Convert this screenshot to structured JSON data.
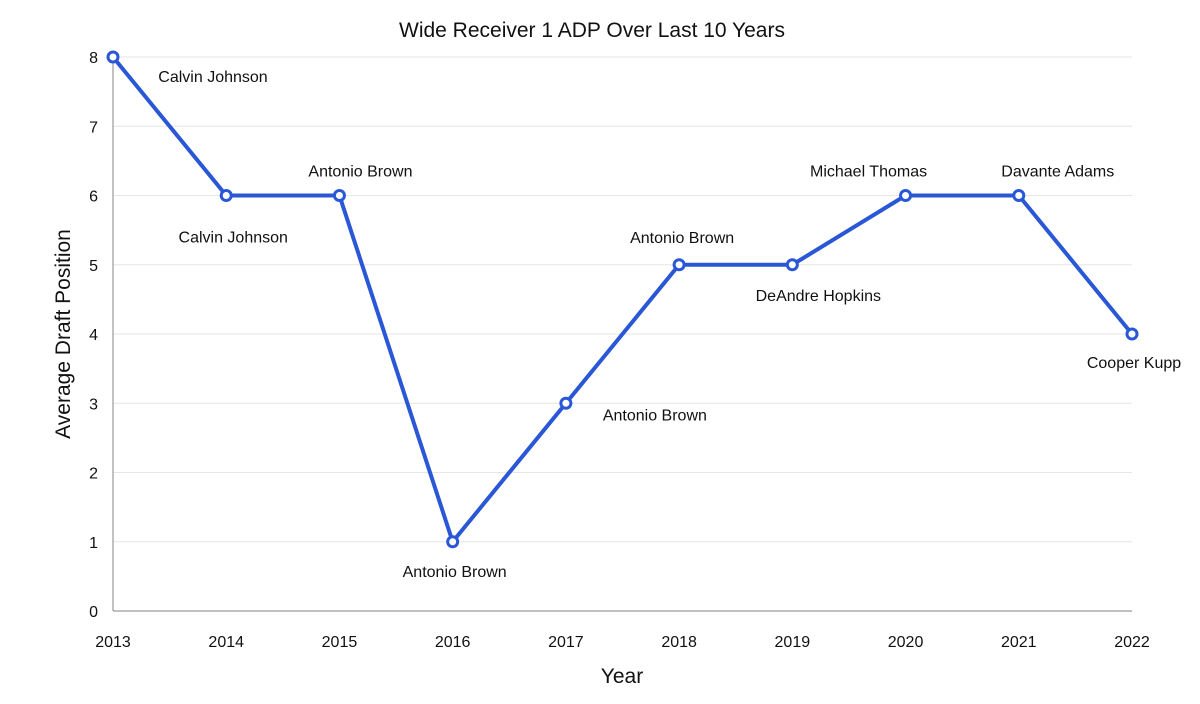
{
  "chart_data": {
    "type": "line",
    "title": "Wide Receiver 1 ADP Over Last 10 Years",
    "xlabel": "Year",
    "ylabel": "Average Draft Position",
    "categories": [
      "2013",
      "2014",
      "2015",
      "2016",
      "2017",
      "2018",
      "2019",
      "2020",
      "2021",
      "2022"
    ],
    "ylim": [
      0,
      8
    ],
    "yticks": [
      "0",
      "1",
      "2",
      "3",
      "4",
      "5",
      "6",
      "7",
      "8"
    ],
    "grid": true,
    "legend": "none",
    "colors": {
      "series": "#2a57d6"
    },
    "series": [
      {
        "values": [
          8,
          6,
          6,
          1,
          3,
          5,
          5,
          6,
          6,
          4
        ],
        "labels": [
          "Calvin Johnson",
          "Calvin Johnson",
          "Antonio Brown",
          "Antonio Brown",
          "Antonio Brown",
          "Antonio Brown",
          "DeAndre Hopkins",
          "Michael Thomas",
          "Davante Adams",
          "Cooper Kupp"
        ]
      }
    ]
  }
}
